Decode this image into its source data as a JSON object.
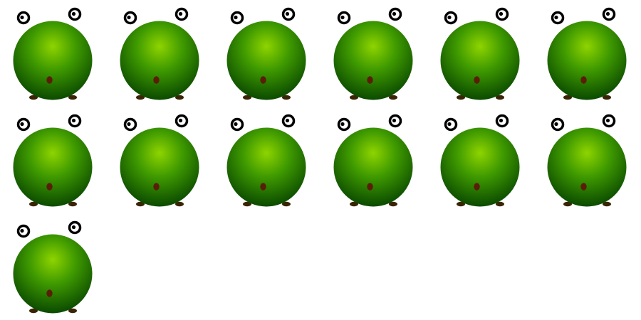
{
  "colors": {
    "background": "#ffffff",
    "body_highlight": "#8fd400",
    "body_mid": "#3f9a00",
    "body_dark": "#0b4a00",
    "eye_ring": "#000000",
    "eye_white": "#ffffff",
    "feet": "#3a2406",
    "mouth": "#5a1e06"
  },
  "sprite_sheet": {
    "frames": [
      {
        "frame": 1,
        "sprite": "green-blob-creature-icon"
      },
      {
        "frame": 2,
        "sprite": "green-blob-creature-icon"
      },
      {
        "frame": 3,
        "sprite": "green-blob-creature-icon"
      },
      {
        "frame": 4,
        "sprite": "green-blob-creature-icon"
      },
      {
        "frame": 5,
        "sprite": "green-blob-creature-icon"
      },
      {
        "frame": 6,
        "sprite": "green-blob-creature-icon"
      },
      {
        "frame": 7,
        "sprite": "green-blob-creature-icon"
      },
      {
        "frame": 8,
        "sprite": "green-blob-creature-icon"
      },
      {
        "frame": 9,
        "sprite": "green-blob-creature-icon"
      },
      {
        "frame": 10,
        "sprite": "green-blob-creature-icon"
      },
      {
        "frame": 11,
        "sprite": "green-blob-creature-icon"
      },
      {
        "frame": 12,
        "sprite": "green-blob-creature-icon"
      },
      {
        "frame": 13,
        "sprite": "green-blob-creature-icon"
      }
    ]
  }
}
